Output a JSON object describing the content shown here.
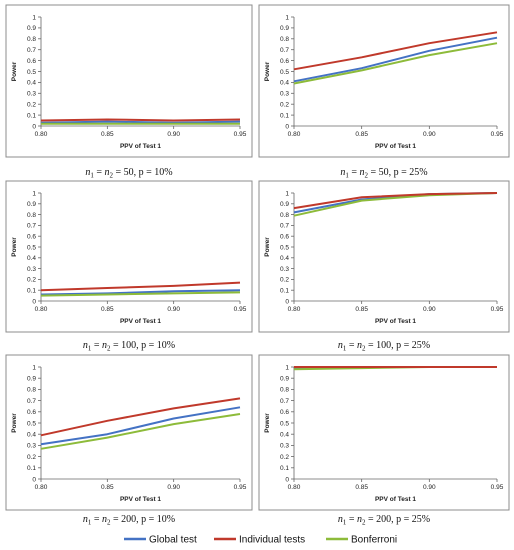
{
  "colors": {
    "global": "#4472c4",
    "individual": "#c0392b",
    "bonferroni": "#8dbb3a",
    "frame": "#8c8c8c"
  },
  "legend": {
    "position": "bottom",
    "items": [
      {
        "label": "Global test",
        "color": "#4472c4"
      },
      {
        "label": "Individual tests",
        "color": "#c0392b"
      },
      {
        "label": "Bonferroni",
        "color": "#8dbb3a"
      }
    ]
  },
  "chart_data": [
    {
      "type": "line",
      "caption": {
        "n_label": "n",
        "sub1": "1",
        "sub2": "2",
        "n_value": "50",
        "p_part": "p = 10%"
      },
      "xlabel": "PPV of Test 1",
      "ylabel": "Power",
      "x": [
        0.8,
        0.85,
        0.9,
        0.95
      ],
      "x_ticks": [
        "0.80",
        "0.85",
        "0.90",
        "0.95"
      ],
      "y_ticks": [
        "0",
        "0.1",
        "0.2",
        "0.3",
        "0.4",
        "0.5",
        "0.6",
        "0.7",
        "0.8",
        "0.9",
        "1"
      ],
      "ylim": [
        0,
        1
      ],
      "grid": false,
      "series": [
        {
          "name": "Global test",
          "values": [
            0.03,
            0.04,
            0.03,
            0.04
          ]
        },
        {
          "name": "Individual tests",
          "values": [
            0.05,
            0.06,
            0.05,
            0.06
          ]
        },
        {
          "name": "Bonferroni",
          "values": [
            0.02,
            0.02,
            0.02,
            0.02
          ]
        }
      ]
    },
    {
      "type": "line",
      "caption": {
        "n_label": "n",
        "sub1": "1",
        "sub2": "2",
        "n_value": "50",
        "p_part": "p = 25%"
      },
      "xlabel": "PPV of Test 1",
      "ylabel": "Power",
      "x": [
        0.8,
        0.85,
        0.9,
        0.95
      ],
      "x_ticks": [
        "0.80",
        "0.85",
        "0.90",
        "0.95"
      ],
      "y_ticks": [
        "0",
        "0.1",
        "0.2",
        "0.3",
        "0.4",
        "0.5",
        "0.6",
        "0.7",
        "0.8",
        "0.9",
        "1"
      ],
      "ylim": [
        0,
        1
      ],
      "grid": false,
      "series": [
        {
          "name": "Global test",
          "values": [
            0.41,
            0.53,
            0.69,
            0.81
          ]
        },
        {
          "name": "Individual tests",
          "values": [
            0.52,
            0.63,
            0.76,
            0.86
          ]
        },
        {
          "name": "Bonferroni",
          "values": [
            0.39,
            0.51,
            0.65,
            0.76
          ]
        }
      ]
    },
    {
      "type": "line",
      "caption": {
        "n_label": "n",
        "sub1": "1",
        "sub2": "2",
        "n_value": "100",
        "p_part": "p = 10%"
      },
      "xlabel": "PPV of Test 1",
      "ylabel": "Power",
      "x": [
        0.8,
        0.85,
        0.9,
        0.95
      ],
      "x_ticks": [
        "0.80",
        "0.85",
        "0.90",
        "0.95"
      ],
      "y_ticks": [
        "0",
        "0.1",
        "0.2",
        "0.3",
        "0.4",
        "0.5",
        "0.6",
        "0.7",
        "0.8",
        "0.9",
        "1"
      ],
      "ylim": [
        0,
        1
      ],
      "grid": false,
      "series": [
        {
          "name": "Global test",
          "values": [
            0.06,
            0.07,
            0.09,
            0.1
          ]
        },
        {
          "name": "Individual tests",
          "values": [
            0.1,
            0.12,
            0.14,
            0.17
          ]
        },
        {
          "name": "Bonferroni",
          "values": [
            0.05,
            0.06,
            0.07,
            0.08
          ]
        }
      ]
    },
    {
      "type": "line",
      "caption": {
        "n_label": "n",
        "sub1": "1",
        "sub2": "2",
        "n_value": "100",
        "p_part": "p = 25%"
      },
      "xlabel": "PPV of Test 1",
      "ylabel": "Power",
      "x": [
        0.8,
        0.85,
        0.9,
        0.95
      ],
      "x_ticks": [
        "0.80",
        "0.85",
        "0.90",
        "0.95"
      ],
      "y_ticks": [
        "0",
        "0.1",
        "0.2",
        "0.3",
        "0.4",
        "0.5",
        "0.6",
        "0.7",
        "0.8",
        "0.9",
        "1"
      ],
      "ylim": [
        0,
        1
      ],
      "grid": false,
      "series": [
        {
          "name": "Global test",
          "values": [
            0.82,
            0.94,
            0.99,
            1.0
          ]
        },
        {
          "name": "Individual tests",
          "values": [
            0.86,
            0.96,
            0.99,
            1.0
          ]
        },
        {
          "name": "Bonferroni",
          "values": [
            0.79,
            0.93,
            0.98,
            1.0
          ]
        }
      ]
    },
    {
      "type": "line",
      "caption": {
        "n_label": "n",
        "sub1": "1",
        "sub2": "2",
        "n_value": "200",
        "p_part": "p = 10%"
      },
      "xlabel": "PPV of Test 1",
      "ylabel": "Power",
      "x": [
        0.8,
        0.85,
        0.9,
        0.95
      ],
      "x_ticks": [
        "0.80",
        "0.85",
        "0.90",
        "0.95"
      ],
      "y_ticks": [
        "0",
        "0.1",
        "0.2",
        "0.3",
        "0.4",
        "0.5",
        "0.6",
        "0.7",
        "0.8",
        "0.9",
        "1"
      ],
      "ylim": [
        0,
        1
      ],
      "grid": false,
      "series": [
        {
          "name": "Global test",
          "values": [
            0.31,
            0.4,
            0.54,
            0.64
          ]
        },
        {
          "name": "Individual tests",
          "values": [
            0.39,
            0.52,
            0.63,
            0.72
          ]
        },
        {
          "name": "Bonferroni",
          "values": [
            0.27,
            0.37,
            0.49,
            0.58
          ]
        }
      ]
    },
    {
      "type": "line",
      "caption": {
        "n_label": "n",
        "sub1": "1",
        "sub2": "2",
        "n_value": "200",
        "p_part": "p = 25%"
      },
      "xlabel": "PPV of Test 1",
      "ylabel": "Power",
      "x": [
        0.8,
        0.85,
        0.9,
        0.95
      ],
      "x_ticks": [
        "0.80",
        "0.85",
        "0.90",
        "0.95"
      ],
      "y_ticks": [
        "0",
        "0.1",
        "0.2",
        "0.3",
        "0.4",
        "0.5",
        "0.6",
        "0.7",
        "0.8",
        "0.9",
        "1"
      ],
      "ylim": [
        0,
        1
      ],
      "grid": false,
      "series": [
        {
          "name": "Global test",
          "values": [
            0.99,
            1.0,
            1.0,
            1.0
          ]
        },
        {
          "name": "Individual tests",
          "values": [
            1.0,
            1.0,
            1.0,
            1.0
          ]
        },
        {
          "name": "Bonferroni",
          "values": [
            0.98,
            0.99,
            1.0,
            1.0
          ]
        }
      ]
    }
  ]
}
